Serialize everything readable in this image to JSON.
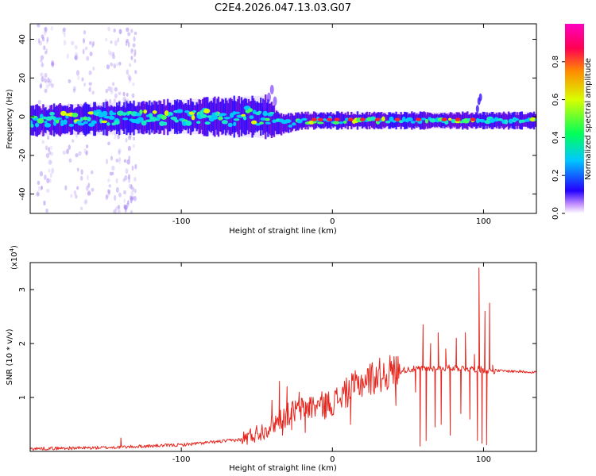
{
  "colors": {
    "trace": "#e8251d",
    "frame": "#000000",
    "background": "#ffffff"
  },
  "chart_data": [
    {
      "type": "heatmap",
      "title": "C2E4.2026.047.13.03.G07",
      "xlabel": "Height of straight line (km)",
      "ylabel": "Frequency (Hz)",
      "xlim": [
        -200,
        135
      ],
      "ylim": [
        -50,
        48
      ],
      "x_ticks": [
        -100,
        0,
        100
      ],
      "y_ticks": [
        -40,
        -20,
        0,
        20,
        40
      ],
      "colorbar": {
        "label": "Normalized spectral amplitude",
        "range": [
          0,
          1
        ],
        "ticks": [
          "0.0",
          "0.2",
          "0.4",
          "0.6",
          "0.8"
        ],
        "colormap": [
          "#ffffff",
          "#2400ff",
          "#00c8ff",
          "#00ff5a",
          "#d8ff00",
          "#ff8c00",
          "#ff0050",
          "#ff00c0"
        ]
      },
      "ridge": [
        {
          "x": -200,
          "center": -2,
          "halfwidth": 7,
          "spread": 5,
          "density": 1.0
        },
        {
          "x": -100,
          "center": 0,
          "halfwidth": 8,
          "spread": 5,
          "density": 1.0
        },
        {
          "x": -45,
          "center": 0,
          "halfwidth": 10,
          "spread": 7,
          "density": 0.9
        },
        {
          "x": -35,
          "center": -4,
          "halfwidth": 5,
          "spread": 3,
          "density": 0.8
        },
        {
          "x": -20,
          "center": -2,
          "halfwidth": 4,
          "spread": 2,
          "density": 0.7
        },
        {
          "x": 135,
          "center": -2,
          "halfwidth": 4,
          "spread": 1,
          "density": 0.6
        }
      ]
    },
    {
      "type": "line",
      "xlabel": "Height of straight line (km)",
      "ylabel": "SNR (10 * v/v)",
      "y_multiplier": "(x10",
      "y_multiplier_exp": "4",
      "y_multiplier_close": ")",
      "xlim": [
        -200,
        135
      ],
      "ylim": [
        0,
        3.5
      ],
      "x_ticks": [
        -100,
        0,
        100
      ],
      "y_ticks": [
        1,
        2,
        3
      ],
      "series": [
        {
          "name": "SNR",
          "baseline": [
            [
              -200,
              0.05
            ],
            [
              -150,
              0.07
            ],
            [
              -100,
              0.12
            ],
            [
              -60,
              0.22
            ],
            [
              -45,
              0.4
            ],
            [
              -35,
              0.6
            ],
            [
              -25,
              0.75
            ],
            [
              -15,
              0.82
            ],
            [
              0,
              0.9
            ],
            [
              10,
              1.1
            ],
            [
              20,
              1.3
            ],
            [
              35,
              1.45
            ],
            [
              50,
              1.52
            ],
            [
              80,
              1.55
            ],
            [
              98,
              1.52
            ],
            [
              105,
              1.5
            ],
            [
              135,
              1.47
            ]
          ],
          "spikes": [
            {
              "x": -140,
              "y": 0.25
            },
            {
              "x": -40,
              "y": 0.95
            },
            {
              "x": -35,
              "y": 1.3
            },
            {
              "x": -33,
              "y": 0.3
            },
            {
              "x": -30,
              "y": 1.2
            },
            {
              "x": -27,
              "y": 0.4
            },
            {
              "x": -22,
              "y": 1.1
            },
            {
              "x": -18,
              "y": 0.35
            },
            {
              "x": -15,
              "y": 1.0
            },
            {
              "x": -10,
              "y": 0.9
            },
            {
              "x": -5,
              "y": 0.6
            },
            {
              "x": 8,
              "y": 1.3
            },
            {
              "x": 12,
              "y": 0.5
            },
            {
              "x": 35,
              "y": 1.2
            },
            {
              "x": 42,
              "y": 0.85
            },
            {
              "x": 55,
              "y": 1.1
            },
            {
              "x": 58,
              "y": 0.1
            },
            {
              "x": 60,
              "y": 2.35
            },
            {
              "x": 62,
              "y": 0.2
            },
            {
              "x": 65,
              "y": 2.0
            },
            {
              "x": 68,
              "y": 0.45
            },
            {
              "x": 70,
              "y": 2.2
            },
            {
              "x": 72,
              "y": 0.5
            },
            {
              "x": 75,
              "y": 1.9
            },
            {
              "x": 78,
              "y": 0.3
            },
            {
              "x": 82,
              "y": 2.1
            },
            {
              "x": 85,
              "y": 0.7
            },
            {
              "x": 88,
              "y": 2.2
            },
            {
              "x": 91,
              "y": 0.6
            },
            {
              "x": 94,
              "y": 1.8
            },
            {
              "x": 96,
              "y": 0.2
            },
            {
              "x": 97,
              "y": 3.4
            },
            {
              "x": 99,
              "y": 0.15
            },
            {
              "x": 101,
              "y": 2.6
            },
            {
              "x": 102,
              "y": 0.12
            },
            {
              "x": 104,
              "y": 2.75
            },
            {
              "x": 106,
              "y": 1.6
            }
          ]
        }
      ]
    }
  ]
}
